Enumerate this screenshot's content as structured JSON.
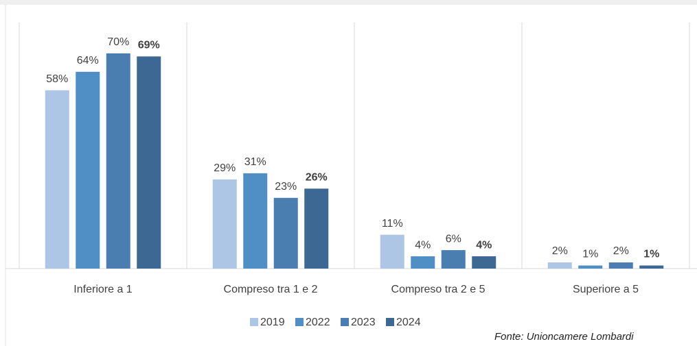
{
  "chart_data": {
    "type": "bar",
    "categories": [
      "Inferiore a 1",
      "Compreso tra 1 e 2",
      "Compreso tra 2 e 5",
      "Superiore a 5"
    ],
    "series": [
      {
        "name": "2019",
        "color": "#adc6e6",
        "values": [
          58,
          29,
          11,
          2
        ],
        "value_labels": [
          "58%",
          "29%",
          "11%",
          "2%"
        ]
      },
      {
        "name": "2022",
        "color": "#4f8fc6",
        "values": [
          64,
          31,
          4,
          1
        ],
        "value_labels": [
          "64%",
          "31%",
          "4%",
          "1%"
        ]
      },
      {
        "name": "2023",
        "color": "#4a7db0",
        "values": [
          70,
          23,
          6,
          2
        ],
        "value_labels": [
          "70%",
          "23%",
          "6%",
          "2%"
        ]
      },
      {
        "name": "2024",
        "color": "#3e6894",
        "values": [
          69,
          26,
          4,
          1
        ],
        "value_labels": [
          "69%",
          "26%",
          "4%",
          "1%"
        ],
        "bold_labels": true
      }
    ],
    "ylim": [
      0,
      80
    ],
    "legend": "bottom",
    "source": "Fonte: Unioncamere Lombardi"
  }
}
